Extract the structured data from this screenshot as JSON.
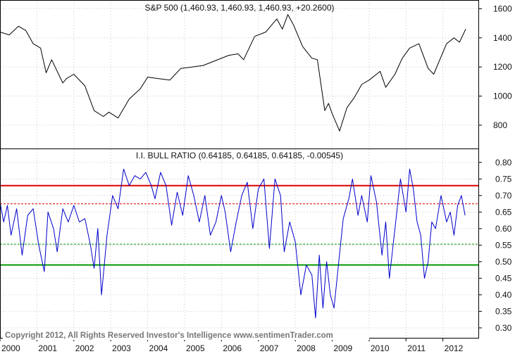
{
  "chart_data": [
    {
      "type": "line",
      "title": "S&P 500 (1,460.93, 1,460.93, 1,460.93, +20.2600)",
      "ylim": [
        640,
        1660
      ],
      "yticks": [
        800,
        1000,
        1200,
        1400,
        1600
      ],
      "grid": true,
      "line_color": "#000000",
      "series": [
        {
          "x": [
            2000.0,
            2000.25,
            2000.5,
            2000.7,
            2000.9,
            2001.1,
            2001.25,
            2001.4,
            2001.7,
            2001.8,
            2002.0,
            2002.3,
            2002.55,
            2002.8,
            2002.95,
            2003.2,
            2003.5,
            2003.8,
            2004.0,
            2004.3,
            2004.6,
            2004.9,
            2005.2,
            2005.5,
            2005.8,
            2006.2,
            2006.45,
            2006.6,
            2006.9,
            2007.2,
            2007.5,
            2007.65,
            2007.8,
            2007.95,
            2008.2,
            2008.45,
            2008.6,
            2008.8,
            2008.9,
            2009.0,
            2009.2,
            2009.4,
            2009.6,
            2009.8,
            2010.0,
            2010.3,
            2010.45,
            2010.7,
            2010.9,
            2011.1,
            2011.35,
            2011.6,
            2011.75,
            2011.9,
            2012.1,
            2012.3,
            2012.45,
            2012.62
          ],
          "y": [
            1440,
            1420,
            1480,
            1450,
            1360,
            1330,
            1160,
            1250,
            1090,
            1120,
            1150,
            1070,
            900,
            860,
            890,
            850,
            980,
            1050,
            1130,
            1120,
            1110,
            1190,
            1200,
            1210,
            1240,
            1280,
            1290,
            1250,
            1410,
            1440,
            1530,
            1460,
            1560,
            1490,
            1340,
            1260,
            1250,
            900,
            950,
            880,
            760,
            920,
            990,
            1080,
            1110,
            1170,
            1060,
            1150,
            1260,
            1330,
            1360,
            1190,
            1150,
            1240,
            1360,
            1400,
            1370,
            1461
          ]
        }
      ]
    },
    {
      "type": "line",
      "title": "I.I. BULL RATIO (0.64185, 0.64185, 0.64185, -0.00545)",
      "ylim": [
        0.27,
        0.84
      ],
      "yticks": [
        0.3,
        0.35,
        0.4,
        0.45,
        0.5,
        0.55,
        0.6,
        0.65,
        0.7,
        0.75,
        0.8
      ],
      "ytick_labels": [
        "0.30",
        "0.35",
        "0.40",
        "0.45",
        "0.50",
        "0.55",
        "0.60",
        "0.65",
        "0.70",
        "0.75",
        "0.80"
      ],
      "xticks": [
        2000,
        2001,
        2002,
        2003,
        2004,
        2005,
        2006,
        2007,
        2008,
        2009,
        2010,
        2011,
        2012
      ],
      "xtick_labels": [
        "2000",
        "2001",
        "2002",
        "2003",
        "2004",
        "2005",
        "2006",
        "2007",
        "2008",
        "2009",
        "2010",
        "2011",
        "2012"
      ],
      "grid": true,
      "line_color": "#0000cc",
      "hlines": [
        {
          "y": 0.73,
          "color": "#dd0000",
          "style": "solid"
        },
        {
          "y": 0.675,
          "color": "#dd0000",
          "style": "dashed"
        },
        {
          "y": 0.553,
          "color": "#009900",
          "style": "dashed"
        },
        {
          "y": 0.49,
          "color": "#009900",
          "style": "solid"
        }
      ],
      "series": [
        {
          "x": [
            2000.0,
            2000.1,
            2000.2,
            2000.3,
            2000.45,
            2000.6,
            2000.75,
            2000.9,
            2001.05,
            2001.2,
            2001.3,
            2001.45,
            2001.55,
            2001.7,
            2001.85,
            2002.0,
            2002.15,
            2002.3,
            2002.45,
            2002.55,
            2002.65,
            2002.75,
            2002.9,
            2003.05,
            2003.2,
            2003.35,
            2003.5,
            2003.65,
            2003.8,
            2003.95,
            2004.1,
            2004.2,
            2004.35,
            2004.5,
            2004.65,
            2004.8,
            2004.95,
            2005.1,
            2005.25,
            2005.4,
            2005.55,
            2005.7,
            2005.85,
            2006.0,
            2006.1,
            2006.25,
            2006.4,
            2006.55,
            2006.7,
            2006.85,
            2007.0,
            2007.15,
            2007.3,
            2007.45,
            2007.6,
            2007.7,
            2007.85,
            2008.0,
            2008.15,
            2008.3,
            2008.45,
            2008.55,
            2008.65,
            2008.75,
            2008.85,
            2008.95,
            2009.05,
            2009.15,
            2009.3,
            2009.45,
            2009.55,
            2009.7,
            2009.8,
            2009.95,
            2010.05,
            2010.2,
            2010.35,
            2010.45,
            2010.55,
            2010.7,
            2010.85,
            2011.0,
            2011.1,
            2011.2,
            2011.3,
            2011.4,
            2011.5,
            2011.6,
            2011.7,
            2011.8,
            2011.95,
            2012.1,
            2012.2,
            2012.3,
            2012.4,
            2012.5,
            2012.6
          ],
          "y": [
            0.68,
            0.62,
            0.67,
            0.58,
            0.66,
            0.52,
            0.64,
            0.66,
            0.55,
            0.47,
            0.65,
            0.6,
            0.53,
            0.66,
            0.62,
            0.67,
            0.62,
            0.63,
            0.55,
            0.48,
            0.6,
            0.4,
            0.58,
            0.7,
            0.66,
            0.78,
            0.73,
            0.76,
            0.75,
            0.77,
            0.73,
            0.69,
            0.77,
            0.73,
            0.61,
            0.71,
            0.64,
            0.76,
            0.7,
            0.62,
            0.7,
            0.58,
            0.62,
            0.7,
            0.65,
            0.53,
            0.62,
            0.7,
            0.74,
            0.6,
            0.72,
            0.75,
            0.54,
            0.75,
            0.7,
            0.53,
            0.62,
            0.56,
            0.4,
            0.49,
            0.46,
            0.33,
            0.52,
            0.36,
            0.5,
            0.4,
            0.36,
            0.47,
            0.63,
            0.69,
            0.75,
            0.64,
            0.7,
            0.62,
            0.76,
            0.68,
            0.52,
            0.62,
            0.45,
            0.6,
            0.75,
            0.65,
            0.78,
            0.72,
            0.62,
            0.58,
            0.45,
            0.5,
            0.62,
            0.6,
            0.7,
            0.62,
            0.65,
            0.58,
            0.67,
            0.7,
            0.64
          ]
        }
      ]
    }
  ],
  "footer": {
    "copyright": "Copyright 2012, All Rights Reserved  Investor's Intelligence  www.sentimenTrader.com"
  }
}
